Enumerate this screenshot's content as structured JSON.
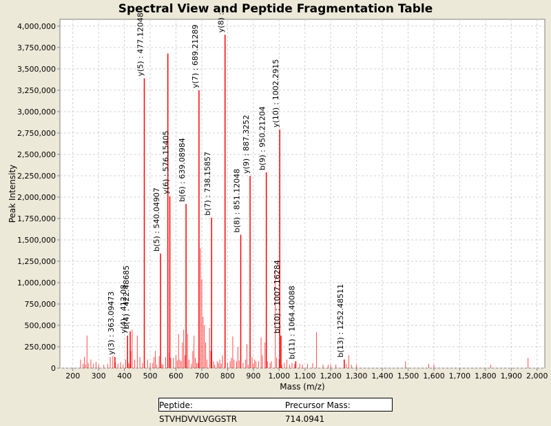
{
  "chart_data": {
    "type": "bar",
    "title": "Spectral View and Peptide Fragmentation Table",
    "xlabel": "Mass (m/z)",
    "ylabel": "Peak Intensity",
    "xlim": [
      150,
      2030
    ],
    "ylim": [
      0,
      4080000
    ],
    "xticks": [
      200,
      300,
      400,
      500,
      600,
      700,
      800,
      900,
      1000,
      1100,
      1200,
      1300,
      1400,
      1500,
      1600,
      1700,
      1800,
      1900,
      2000
    ],
    "xtick_labels": [
      "200",
      "300",
      "400",
      "500",
      "600",
      "700",
      "800",
      "900",
      "1,000",
      "1,100",
      "1,200",
      "1,300",
      "1,400",
      "1,500",
      "1,600",
      "1,700",
      "1,800",
      "1,900",
      "2,000"
    ],
    "yticks": [
      0,
      250000,
      500000,
      750000,
      1000000,
      1250000,
      1500000,
      1750000,
      2000000,
      2250000,
      2500000,
      2750000,
      3000000,
      3250000,
      3500000,
      3750000,
      4000000
    ],
    "ytick_labels": [
      "0",
      "250,000",
      "500,000",
      "750,000",
      "1,000,000",
      "1,250,000",
      "1,500,000",
      "1,750,000",
      "2,000,000",
      "2,250,000",
      "2,500,000",
      "2,750,000",
      "3,000,000",
      "3,250,000",
      "3,500,000",
      "3,750,000",
      "4,000,000"
    ],
    "grid": true,
    "series_color": "#ff0000",
    "peaks": {
      "mz": [
        230,
        240,
        245,
        250,
        255,
        260,
        270,
        280,
        290,
        300,
        320,
        335,
        345,
        355,
        365,
        375,
        385,
        395,
        405,
        412,
        415,
        420,
        425,
        430,
        440,
        450,
        460,
        470,
        490,
        500,
        510,
        515,
        520,
        525,
        535,
        545,
        550,
        560,
        575,
        580,
        590,
        600,
        605,
        610,
        615,
        620,
        625,
        630,
        635,
        645,
        650,
        660,
        665,
        670,
        675,
        680,
        685,
        695,
        700,
        705,
        710,
        715,
        720,
        730,
        735,
        745,
        750,
        760,
        765,
        770,
        775,
        780,
        800,
        810,
        815,
        820,
        825,
        835,
        840,
        845,
        860,
        870,
        875,
        880,
        895,
        900,
        905,
        910,
        920,
        930,
        935,
        945,
        955,
        965,
        970,
        985,
        990,
        1000,
        1010,
        1020,
        1030,
        1040,
        1050,
        1060,
        1080,
        1090,
        1110,
        1130,
        1145,
        1170,
        1190,
        1200,
        1220,
        1260,
        1270,
        1280,
        1300,
        1490,
        1580,
        1600,
        1820,
        1965
      ],
      "intensity": [
        100000,
        50000,
        130000,
        40000,
        380000,
        60000,
        100000,
        50000,
        70000,
        40000,
        40000,
        50000,
        130000,
        140000,
        60000,
        50000,
        70000,
        40000,
        100000,
        120000,
        60000,
        50000,
        200000,
        450000,
        100000,
        380000,
        130000,
        60000,
        100000,
        60000,
        60000,
        130000,
        200000,
        40000,
        140000,
        50000,
        40000,
        130000,
        180000,
        120000,
        120000,
        150000,
        90000,
        400000,
        100000,
        80000,
        300000,
        450000,
        150000,
        400000,
        100000,
        50000,
        200000,
        380000,
        120000,
        60000,
        60000,
        1400000,
        1040000,
        600000,
        500000,
        300000,
        100000,
        470000,
        200000,
        80000,
        40000,
        80000,
        60000,
        100000,
        50000,
        150000,
        60000,
        80000,
        120000,
        370000,
        100000,
        80000,
        250000,
        90000,
        60000,
        100000,
        280000,
        40000,
        130000,
        50000,
        100000,
        80000,
        80000,
        360000,
        150000,
        300000,
        80000,
        60000,
        80000,
        1150000,
        120000,
        100000,
        40000,
        60000,
        100000,
        40000,
        60000,
        50000,
        50000,
        40000,
        50000,
        60000,
        420000,
        40000,
        40000,
        40000,
        40000,
        50000,
        150000,
        40000,
        40000,
        80000,
        50000,
        40000,
        40000,
        120000
      ]
    },
    "annotated_peaks": [
      {
        "mz": 363.09473,
        "intensity": 130000,
        "label": "y(3) : 363.09473"
      },
      {
        "mz": 412.08,
        "intensity": 380000,
        "label": "y(4) : 412.08"
      },
      {
        "mz": 422.48685,
        "intensity": 430000,
        "label": "b(4) : 422.48685"
      },
      {
        "mz": 477.12048,
        "intensity": 3390000,
        "label": "y(5) : 477.12048"
      },
      {
        "mz": 540.04907,
        "intensity": 1340000,
        "label": "b(5) : 540.04907"
      },
      {
        "mz": 568.5,
        "intensity": 3680000,
        "label": ""
      },
      {
        "mz": 576.15405,
        "intensity": 2010000,
        "label": "y(6) : 576.15405"
      },
      {
        "mz": 639.08984,
        "intensity": 1920000,
        "label": "b(6) : 639.08984"
      },
      {
        "mz": 689.21289,
        "intensity": 3250000,
        "label": "y(7) : 689.21289"
      },
      {
        "mz": 738.15857,
        "intensity": 1760000,
        "label": "b(7) : 738.15857"
      },
      {
        "mz": 790.2,
        "intensity": 3900000,
        "label": "y(8) :"
      },
      {
        "mz": 851.12048,
        "intensity": 1560000,
        "label": "b(8) : 851.12048"
      },
      {
        "mz": 887.3252,
        "intensity": 2250000,
        "label": "y(9) : 887.3252"
      },
      {
        "mz": 950.21204,
        "intensity": 2290000,
        "label": "b(9) : 950.21204"
      },
      {
        "mz": 1002.2915,
        "intensity": 2790000,
        "label": "y(10) : 1002.2915"
      },
      {
        "mz": 1007.16284,
        "intensity": 380000,
        "label": "b(10) : 1007.16284"
      },
      {
        "mz": 1064.40088,
        "intensity": 80000,
        "label": "b(11) : 1064.40088"
      },
      {
        "mz": 1252.48511,
        "intensity": 100000,
        "label": "b(13) : 1252.48511"
      }
    ]
  },
  "legend": {
    "peptide": "Peptide: STVHDVVLVGGSTR",
    "precursor": "Precursor Mass: 714.0941"
  }
}
